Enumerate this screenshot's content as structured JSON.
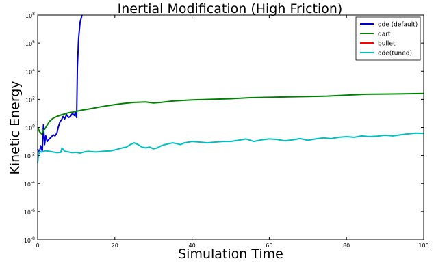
{
  "chart_data": {
    "type": "line",
    "title": "Inertial Modification (High Friction)",
    "xlabel": "Simulation Time",
    "ylabel": "Kinetic Energy",
    "xlim": [
      0,
      100
    ],
    "ylim_log10": [
      -8,
      8
    ],
    "yscale": "log",
    "x_ticks": [
      0,
      20,
      40,
      60,
      80,
      100
    ],
    "y_ticks": [
      {
        "exp": -8,
        "base": "10",
        "sup": "-8"
      },
      {
        "exp": -6,
        "base": "10",
        "sup": "-6"
      },
      {
        "exp": -4,
        "base": "10",
        "sup": "-4"
      },
      {
        "exp": -2,
        "base": "10",
        "sup": "-2"
      },
      {
        "exp": 0,
        "base": "10",
        "sup": "0"
      },
      {
        "exp": 2,
        "base": "10",
        "sup": "2"
      },
      {
        "exp": 4,
        "base": "10",
        "sup": "4"
      },
      {
        "exp": 6,
        "base": "10",
        "sup": "6"
      },
      {
        "exp": 8,
        "base": "10",
        "sup": "8"
      }
    ],
    "grid": false,
    "legend_position": "top-right",
    "series": [
      {
        "name": "ode (default)",
        "color": "#0000cc",
        "x": [
          0,
          0.4,
          0.8,
          1.2,
          1.5,
          1.8,
          2.1,
          2.5,
          3.0,
          3.5,
          4.0,
          4.5,
          5.0,
          5.4,
          5.8,
          6.2,
          6.6,
          7.0,
          7.5,
          8.0,
          8.5,
          9.0,
          9.5,
          9.8,
          10.0,
          10.1,
          10.3,
          10.6,
          11.0,
          11.5
        ],
        "y": [
          0.03,
          0.015,
          0.05,
          0.02,
          1.5,
          0.06,
          0.25,
          0.1,
          0.15,
          0.2,
          0.3,
          0.25,
          0.4,
          1.2,
          2.5,
          3.5,
          6,
          4,
          8,
          5,
          6,
          10,
          7,
          12,
          6,
          5,
          20000,
          2000000,
          30000000,
          100000000
        ]
      },
      {
        "name": "dart",
        "color": "#008000",
        "x": [
          0,
          0.5,
          1,
          2,
          3,
          4,
          5,
          6,
          7,
          8,
          9,
          10,
          12,
          14,
          16,
          18,
          20,
          22,
          25,
          28,
          30,
          32,
          35,
          40,
          45,
          50,
          55,
          60,
          65,
          70,
          75,
          80,
          85,
          90,
          95,
          100
        ],
        "y": [
          1.0,
          0.5,
          0.35,
          0.9,
          2.5,
          4.5,
          6,
          7.5,
          9,
          11,
          12,
          14,
          18,
          22,
          28,
          35,
          42,
          50,
          60,
          65,
          55,
          60,
          75,
          90,
          100,
          110,
          130,
          140,
          150,
          160,
          170,
          200,
          230,
          240,
          250,
          260
        ]
      },
      {
        "name": "bullet",
        "color": "#ff0000",
        "x": [],
        "y": []
      },
      {
        "name": "ode(tuned)",
        "color": "#00bfbf",
        "x": [
          0,
          0.3,
          0.6,
          1,
          2,
          3,
          4,
          5,
          6,
          6.3,
          7,
          8,
          9,
          10,
          11,
          12,
          13,
          15,
          17,
          19,
          20,
          21,
          22,
          23,
          24,
          25,
          26,
          27,
          28,
          29,
          30,
          31,
          32,
          33,
          34,
          35,
          36,
          37,
          38,
          40,
          42,
          44,
          46,
          48,
          50,
          52,
          54,
          56,
          58,
          60,
          62,
          64,
          66,
          68,
          70,
          72,
          74,
          76,
          78,
          80,
          82,
          84,
          86,
          88,
          90,
          92,
          94,
          96,
          98,
          100
        ],
        "y": [
          0.003,
          0.015,
          0.02,
          0.018,
          0.022,
          0.02,
          0.018,
          0.016,
          0.017,
          0.035,
          0.02,
          0.018,
          0.016,
          0.017,
          0.015,
          0.018,
          0.02,
          0.018,
          0.02,
          0.022,
          0.025,
          0.03,
          0.035,
          0.04,
          0.06,
          0.08,
          0.06,
          0.04,
          0.035,
          0.04,
          0.03,
          0.035,
          0.05,
          0.06,
          0.07,
          0.08,
          0.07,
          0.06,
          0.08,
          0.1,
          0.09,
          0.08,
          0.09,
          0.1,
          0.1,
          0.12,
          0.15,
          0.1,
          0.13,
          0.15,
          0.14,
          0.11,
          0.13,
          0.16,
          0.12,
          0.15,
          0.18,
          0.16,
          0.2,
          0.22,
          0.2,
          0.25,
          0.22,
          0.24,
          0.28,
          0.25,
          0.3,
          0.35,
          0.4,
          0.38
        ]
      }
    ]
  }
}
